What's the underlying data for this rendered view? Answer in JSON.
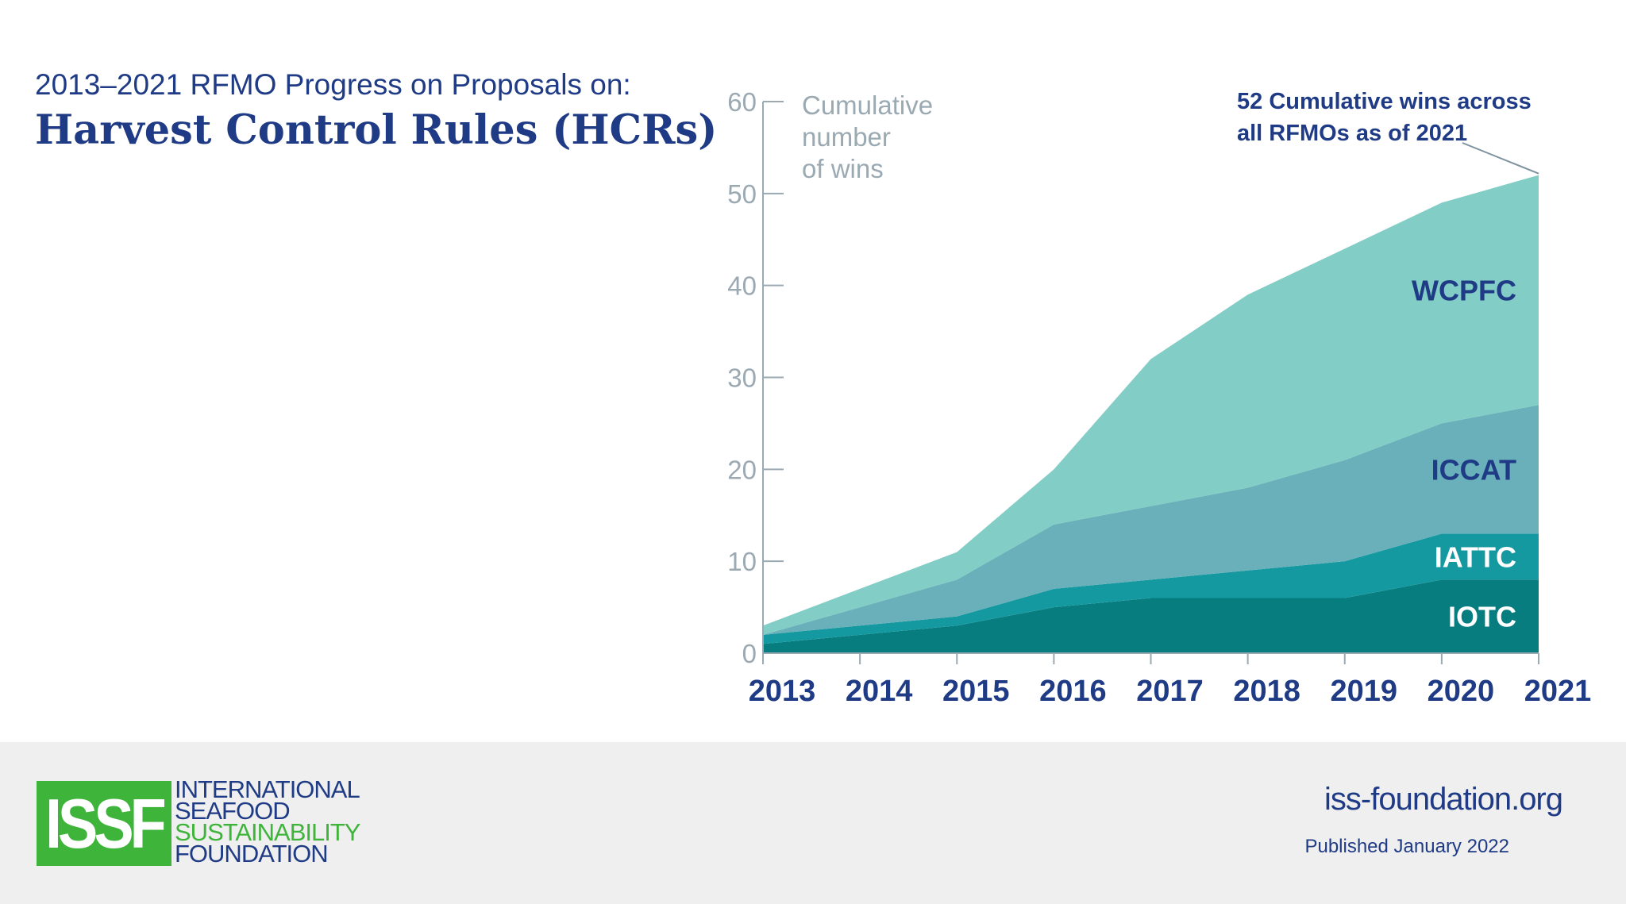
{
  "header": {
    "subtitle": "2013–2021 RFMO Progress on Proposals on:",
    "title": "Harvest Control Rules (HCRs)"
  },
  "chart_data": {
    "type": "area",
    "stacked": true,
    "x": [
      2013,
      2014,
      2015,
      2016,
      2017,
      2018,
      2019,
      2020,
      2021
    ],
    "series": [
      {
        "name": "IOTC",
        "values": [
          1,
          2,
          3,
          5,
          6,
          6,
          6,
          8,
          8
        ],
        "color": "#077d80",
        "label_color": "#ffffff"
      },
      {
        "name": "IATTC",
        "values": [
          1,
          1,
          1,
          2,
          2,
          3,
          4,
          5,
          5
        ],
        "color": "#1599a0",
        "label_color": "#ffffff"
      },
      {
        "name": "ICCAT",
        "values": [
          0,
          2,
          4,
          7,
          8,
          9,
          11,
          12,
          14
        ],
        "color": "#6ab0bb",
        "label_color": "#1f3b86"
      },
      {
        "name": "WCPFC",
        "values": [
          1,
          2,
          3,
          6,
          16,
          21,
          23,
          24,
          25
        ],
        "color": "#82cdc5",
        "label_color": "#1f3b86"
      }
    ],
    "ylabel": "Cumulative number of wins",
    "ylabel_lines": [
      "Cumulative",
      "number",
      "of wins"
    ],
    "ylim": [
      0,
      60
    ],
    "yticks": [
      0,
      10,
      20,
      30,
      40,
      50,
      60
    ],
    "annotation": {
      "lines": [
        "52 Cumulative wins across",
        "all RFMOs as of 2021"
      ],
      "x": 2021,
      "y": 52
    },
    "grid": false,
    "legend": "inline labels"
  },
  "footer": {
    "logo_letters": "ISSF",
    "logo_words": [
      "INTERNATIONAL",
      "SEAFOOD",
      "SUSTAINABILITY",
      "FOUNDATION"
    ],
    "website": "iss-foundation.org",
    "published": "Published January 2022"
  },
  "colors": {
    "brand_blue": "#1f3b86",
    "brand_green": "#3fb43b",
    "axis_gray": "#9aa9b2",
    "footer_bg": "#efefef"
  }
}
